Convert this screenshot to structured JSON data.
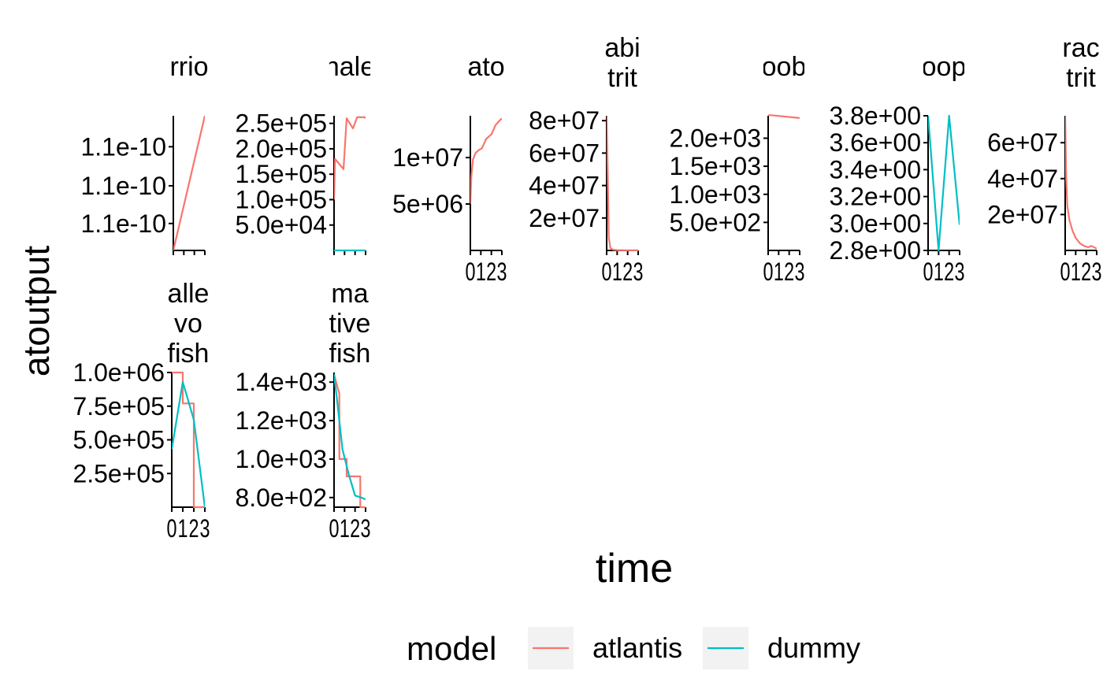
{
  "chart_data": {
    "type": "line",
    "xlabel": "time",
    "ylabel": "atoutput",
    "legend": {
      "title": "model",
      "position": "bottom",
      "entries": [
        {
          "label": "atlantis",
          "color": "#F8766D"
        },
        {
          "label": "dummy",
          "color": "#00BFC4"
        }
      ]
    },
    "panels": [
      {
        "strip": [
          "rrio"
        ],
        "xlim": [
          0,
          3
        ],
        "ylim": [
          0,
          1
        ],
        "yticks": [
          {
            "label": "1.1e-10",
            "value": 0.77
          },
          {
            "label": "1.1e-10",
            "value": 0.48
          },
          {
            "label": "1.1e-10",
            "value": 0.2
          }
        ],
        "xtick_labels": [],
        "series": [
          {
            "name": "atlantis",
            "x": [
              0,
              3
            ],
            "y": [
              0,
              1
            ]
          }
        ]
      },
      {
        "strip": [
          "nale"
        ],
        "xlim": [
          0,
          3
        ],
        "ylim": [
          0,
          265000
        ],
        "yticks": [
          {
            "label": "2.5e+05",
            "value": 250000
          },
          {
            "label": "2.0e+05",
            "value": 200000
          },
          {
            "label": "1.5e+05",
            "value": 150000
          },
          {
            "label": "1.0e+05",
            "value": 100000
          },
          {
            "label": "5.0e+04",
            "value": 50000
          }
        ],
        "xtick_labels": [],
        "series": [
          {
            "name": "atlantis",
            "x": [
              0,
              0.1,
              0.9,
              1.2,
              1.8,
              2.2,
              2.9,
              3.0
            ],
            "y": [
              100000,
              180000,
              160000,
              260000,
              240000,
              262000,
              262000,
              260000
            ]
          },
          {
            "name": "dummy",
            "x": [
              0,
              3
            ],
            "y": [
              0,
              0
            ]
          }
        ]
      },
      {
        "strip": [
          "ato"
        ],
        "xlim": [
          0,
          3
        ],
        "ylim": [
          0,
          14500000
        ],
        "yticks": [
          {
            "label": "1e+07",
            "value": 10000000
          },
          {
            "label": "5e+06",
            "value": 5000000
          }
        ],
        "xtick_labels": [
          "0",
          "1",
          "2",
          "3"
        ],
        "series": [
          {
            "name": "atlantis",
            "x": [
              0,
              0.1,
              0.25,
              0.5,
              0.8,
              1.1,
              1.5,
              2.0,
              2.4,
              2.8,
              3.0
            ],
            "y": [
              5000000,
              8000000,
              9800000,
              10500000,
              10800000,
              11000000,
              12000000,
              12500000,
              13500000,
              14000000,
              14200000
            ]
          }
        ]
      },
      {
        "strip": [
          "abi",
          "trit"
        ],
        "xlim": [
          0,
          3
        ],
        "ylim": [
          0,
          83000000
        ],
        "yticks": [
          {
            "label": "8e+07",
            "value": 80000000
          },
          {
            "label": "6e+07",
            "value": 60000000
          },
          {
            "label": "4e+07",
            "value": 40000000
          },
          {
            "label": "2e+07",
            "value": 20000000
          }
        ],
        "xtick_labels": [
          "0",
          "1",
          "2",
          "3"
        ],
        "series": [
          {
            "name": "atlantis",
            "x": [
              0,
              0.1,
              0.2,
              0.35,
              0.6,
              1.0,
              2.0,
              3.0
            ],
            "y": [
              83000000,
              50000000,
              8000000,
              1500000,
              500000,
              200000,
              100000,
              50000
            ]
          }
        ]
      },
      {
        "strip": [
          "oob"
        ],
        "xlim": [
          0,
          3
        ],
        "ylim": [
          0,
          2400
        ],
        "yticks": [
          {
            "label": "2.0e+03",
            "value": 2000
          },
          {
            "label": "1.5e+03",
            "value": 1500
          },
          {
            "label": "1.0e+03",
            "value": 1000
          },
          {
            "label": "5.0e+02",
            "value": 500
          }
        ],
        "xtick_labels": [
          "0",
          "1",
          "2",
          "3"
        ],
        "series": [
          {
            "name": "atlantis",
            "x": [
              0,
              0.3,
              3.0
            ],
            "y": [
              2410,
              2410,
              2360
            ]
          }
        ]
      },
      {
        "strip": [
          "oop"
        ],
        "xlim": [
          0,
          3
        ],
        "ylim": [
          2.8,
          3.8
        ],
        "yticks": [
          {
            "label": "3.8e+00",
            "value": 3.8
          },
          {
            "label": "3.6e+00",
            "value": 3.6
          },
          {
            "label": "3.4e+00",
            "value": 3.4
          },
          {
            "label": "3.2e+00",
            "value": 3.2
          },
          {
            "label": "3.0e+00",
            "value": 3.0
          },
          {
            "label": "2.8e+00",
            "value": 2.8
          }
        ],
        "xtick_labels": [
          "0",
          "1",
          "2",
          "3"
        ],
        "series": [
          {
            "name": "dummy",
            "x": [
              0,
              1,
              2,
              3
            ],
            "y": [
              3.8,
              2.8,
              3.8,
              2.99
            ]
          }
        ]
      },
      {
        "strip": [
          "rac",
          "trit"
        ],
        "xlim": [
          0,
          3
        ],
        "ylim": [
          0,
          75000000
        ],
        "yticks": [
          {
            "label": "6e+07",
            "value": 60000000
          },
          {
            "label": "4e+07",
            "value": 40000000
          },
          {
            "label": "2e+07",
            "value": 20000000
          }
        ],
        "xtick_labels": [
          "0",
          "1",
          "2",
          "3"
        ],
        "series": [
          {
            "name": "atlantis",
            "x": [
              0,
              0.1,
              0.2,
              0.4,
              0.7,
              1.0,
              1.4,
              1.8,
              2.2,
              2.5,
              3.0
            ],
            "y": [
              75000000,
              40000000,
              25000000,
              17000000,
              11000000,
              7000000,
              4000000,
              2500000,
              1800000,
              2500000,
              1000000
            ]
          }
        ]
      },
      {
        "strip": [
          "alle",
          "vo",
          "fish"
        ],
        "xlim": [
          0,
          3
        ],
        "ylim": [
          0,
          1000000
        ],
        "yticks": [
          {
            "label": "1.0e+06",
            "value": 1000000
          },
          {
            "label": "7.5e+05",
            "value": 750000
          },
          {
            "label": "5.0e+05",
            "value": 500000
          },
          {
            "label": "2.5e+05",
            "value": 250000
          }
        ],
        "xtick_labels": [
          "0",
          "1",
          "2",
          "3"
        ],
        "series": [
          {
            "name": "atlantis",
            "x": [
              0,
              1,
              1,
              2,
              2,
              3
            ],
            "y": [
              1000000,
              1000000,
              770000,
              770000,
              0,
              0
            ]
          },
          {
            "name": "dummy",
            "x": [
              0,
              1,
              2,
              3
            ],
            "y": [
              430000,
              930000,
              650000,
              0
            ]
          }
        ]
      },
      {
        "strip": [
          "ma",
          "tive",
          "fish"
        ],
        "xlim": [
          0,
          3
        ],
        "ylim": [
          750,
          1450
        ],
        "yticks": [
          {
            "label": "1.4e+03",
            "value": 1400
          },
          {
            "label": "1.2e+03",
            "value": 1200
          },
          {
            "label": "1.0e+03",
            "value": 1000
          },
          {
            "label": "8.0e+02",
            "value": 800
          }
        ],
        "xtick_labels": [
          "0",
          "1",
          "2",
          "3"
        ],
        "series": [
          {
            "name": "atlantis",
            "x": [
              0,
              0.5,
              0.5,
              1.2,
              1.2,
              1.8,
              1.8,
              2.5,
              2.5,
              3.0
            ],
            "y": [
              1440,
              1340,
              1000,
              1000,
              910,
              910,
              910,
              910,
              750,
              750
            ]
          },
          {
            "name": "dummy",
            "x": [
              0,
              0.3,
              0.8,
              1.4,
              2.0,
              2.6,
              3.0
            ],
            "y": [
              1440,
              1300,
              1050,
              920,
              810,
              800,
              790
            ]
          }
        ]
      }
    ]
  }
}
